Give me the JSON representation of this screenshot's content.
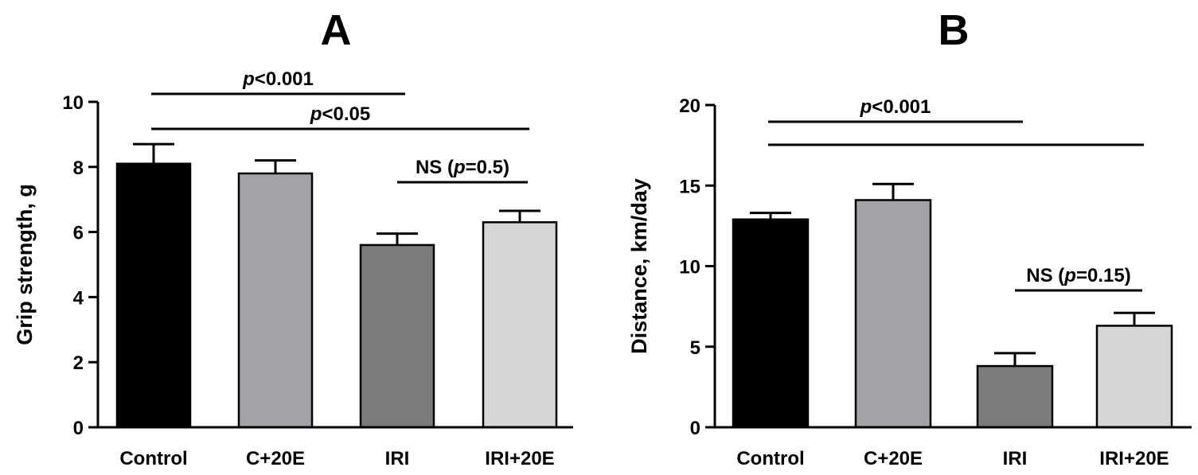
{
  "chart_data": [
    {
      "type": "bar",
      "title": "A",
      "xlabel": "",
      "ylabel": "Grip strength, g",
      "ylim": [
        0,
        10
      ],
      "yticks": [
        "0",
        "2",
        "4",
        "6",
        "8",
        "10"
      ],
      "categories": [
        "Control",
        "C+20E",
        "IRI",
        "IRI+20E"
      ],
      "values": [
        8.1,
        7.8,
        5.6,
        6.3
      ],
      "errors": [
        0.6,
        0.4,
        0.35,
        0.35
      ],
      "colors": [
        "#000000",
        "#a3a3a7",
        "#7b7b7b",
        "#d6d6d6"
      ],
      "significance": [
        {
          "from": 0,
          "to": 2,
          "prefix": "",
          "p": "p",
          "rest": "<0.001",
          "suffix": ""
        },
        {
          "from": 0,
          "to": 3,
          "prefix": "",
          "p": "p",
          "rest": "<0.05",
          "suffix": ""
        },
        {
          "from": 2,
          "to": 3,
          "prefix": "NS (",
          "p": "p",
          "rest": "=0.5",
          "suffix": ")"
        }
      ]
    },
    {
      "type": "bar",
      "title": "B",
      "xlabel": "",
      "ylabel": "Distance, km/day",
      "ylim": [
        0,
        20
      ],
      "yticks": [
        "0",
        "5",
        "10",
        "15",
        "20"
      ],
      "categories": [
        "Control",
        "C+20E",
        "IRI",
        "IRI+20E"
      ],
      "values": [
        12.9,
        14.1,
        3.8,
        6.3
      ],
      "errors": [
        0.4,
        1.0,
        0.8,
        0.8
      ],
      "colors": [
        "#000000",
        "#a3a3a7",
        "#7b7b7b",
        "#d6d6d6"
      ],
      "significance": [
        {
          "from": 0,
          "to": 2,
          "prefix": "",
          "p": "p",
          "rest": "<0.001",
          "suffix": ""
        },
        {
          "from": 0,
          "to": 3,
          "prefix": "",
          "p": "",
          "rest": "",
          "suffix": ""
        },
        {
          "from": 2,
          "to": 3,
          "prefix": "NS (",
          "p": "p",
          "rest": "=0.15",
          "suffix": ")"
        }
      ]
    }
  ]
}
